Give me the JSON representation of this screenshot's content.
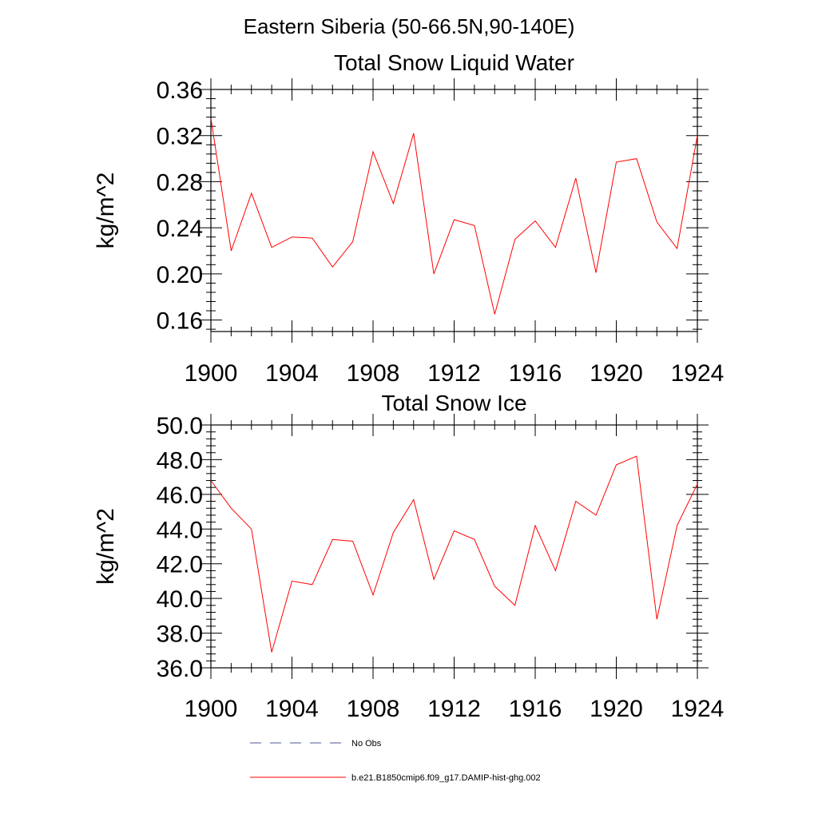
{
  "figure": {
    "title": "Eastern Siberia (50-66.5N,90-140E)"
  },
  "colors": {
    "series_line": "#ff0000",
    "obs_line": "#4b5a8c",
    "axis": "#000000"
  },
  "chart_data": [
    {
      "type": "line",
      "title": "Total Snow Liquid Water",
      "xlabel": "",
      "ylabel": "kg/m^2",
      "xlim": [
        1900,
        1924
      ],
      "ylim": [
        0.15,
        0.36
      ],
      "x_ticks": [
        1900,
        1904,
        1908,
        1912,
        1916,
        1920,
        1924
      ],
      "x_tick_labels": [
        "1900",
        "1904",
        "1908",
        "1912",
        "1916",
        "1920",
        "1924"
      ],
      "y_ticks": [
        0.16,
        0.2,
        0.24,
        0.28,
        0.32,
        0.36
      ],
      "y_tick_labels": [
        "0.16",
        "0.20",
        "0.24",
        "0.28",
        "0.32",
        "0.36"
      ],
      "grid": false,
      "series": [
        {
          "name": "b.e21.B1850cmip6.f09_g17.DAMIP-hist-ghg.002",
          "x": [
            1900,
            1901,
            1902,
            1903,
            1904,
            1905,
            1906,
            1907,
            1908,
            1909,
            1910,
            1911,
            1912,
            1913,
            1914,
            1915,
            1916,
            1917,
            1918,
            1919,
            1920,
            1921,
            1922,
            1923,
            1924
          ],
          "y": [
            0.335,
            0.22,
            0.27,
            0.223,
            0.232,
            0.231,
            0.206,
            0.228,
            0.306,
            0.261,
            0.322,
            0.2,
            0.247,
            0.242,
            0.165,
            0.23,
            0.246,
            0.223,
            0.283,
            0.201,
            0.297,
            0.3,
            0.245,
            0.222,
            0.32
          ]
        }
      ]
    },
    {
      "type": "line",
      "title": "Total Snow Ice",
      "xlabel": "",
      "ylabel": "kg/m^2",
      "xlim": [
        1900,
        1924
      ],
      "ylim": [
        36.0,
        50.0
      ],
      "x_ticks": [
        1900,
        1904,
        1908,
        1912,
        1916,
        1920,
        1924
      ],
      "x_tick_labels": [
        "1900",
        "1904",
        "1908",
        "1912",
        "1916",
        "1920",
        "1924"
      ],
      "y_ticks": [
        36.0,
        38.0,
        40.0,
        42.0,
        44.0,
        46.0,
        48.0,
        50.0
      ],
      "y_tick_labels": [
        "36.0",
        "38.0",
        "40.0",
        "42.0",
        "44.0",
        "46.0",
        "48.0",
        "50.0"
      ],
      "grid": false,
      "series": [
        {
          "name": "b.e21.B1850cmip6.f09_g17.DAMIP-hist-ghg.002",
          "x": [
            1900,
            1901,
            1902,
            1903,
            1904,
            1905,
            1906,
            1907,
            1908,
            1909,
            1910,
            1911,
            1912,
            1913,
            1914,
            1915,
            1916,
            1917,
            1918,
            1919,
            1920,
            1921,
            1922,
            1923,
            1924
          ],
          "y": [
            46.8,
            45.2,
            44.0,
            36.9,
            41.0,
            40.8,
            43.4,
            43.3,
            40.2,
            43.8,
            45.7,
            41.1,
            43.9,
            43.4,
            40.7,
            39.6,
            44.2,
            41.6,
            45.6,
            44.8,
            47.7,
            48.2,
            38.8,
            44.2,
            46.6
          ]
        }
      ]
    }
  ],
  "legend": {
    "placement": "bottom",
    "entries": [
      {
        "label": "No Obs",
        "style": "dashed"
      },
      {
        "label": "b.e21.B1850cmip6.f09_g17.DAMIP-hist-ghg.002",
        "style": "solid"
      }
    ]
  }
}
